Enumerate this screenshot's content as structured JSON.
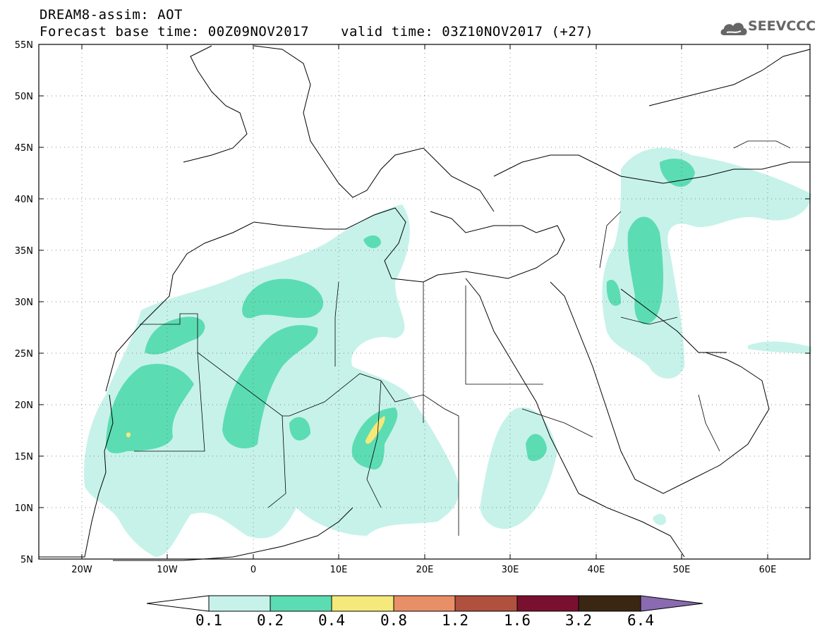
{
  "header": {
    "title_line1": "DREAM8-assim: AOT",
    "title_line2": "Forecast base time: 00Z09NOV2017",
    "valid_time": "valid time: 03Z10NOV2017 (+27)"
  },
  "logo": {
    "text": "SEEVCCC",
    "icon": "cloud-icon"
  },
  "map": {
    "lon_range": [
      -25,
      65
    ],
    "lat_range": [
      5,
      55
    ],
    "lat_labels": [
      "55N",
      "50N",
      "45N",
      "40N",
      "35N",
      "30N",
      "25N",
      "20N",
      "15N",
      "10N",
      "5N"
    ],
    "lon_labels": [
      "20W",
      "10W",
      "0",
      "10E",
      "20E",
      "30E",
      "40E",
      "50E",
      "60E"
    ]
  },
  "colorbar": {
    "labels": [
      "0.1",
      "0.2",
      "0.4",
      "0.8",
      "1.2",
      "1.6",
      "3.2",
      "6.4"
    ],
    "colors": [
      "#c6f2ea",
      "#5cdcb2",
      "#f4e97a",
      "#e98f67",
      "#b0503e",
      "#7a1030",
      "#3b2614",
      "#8a6ab0"
    ]
  }
}
